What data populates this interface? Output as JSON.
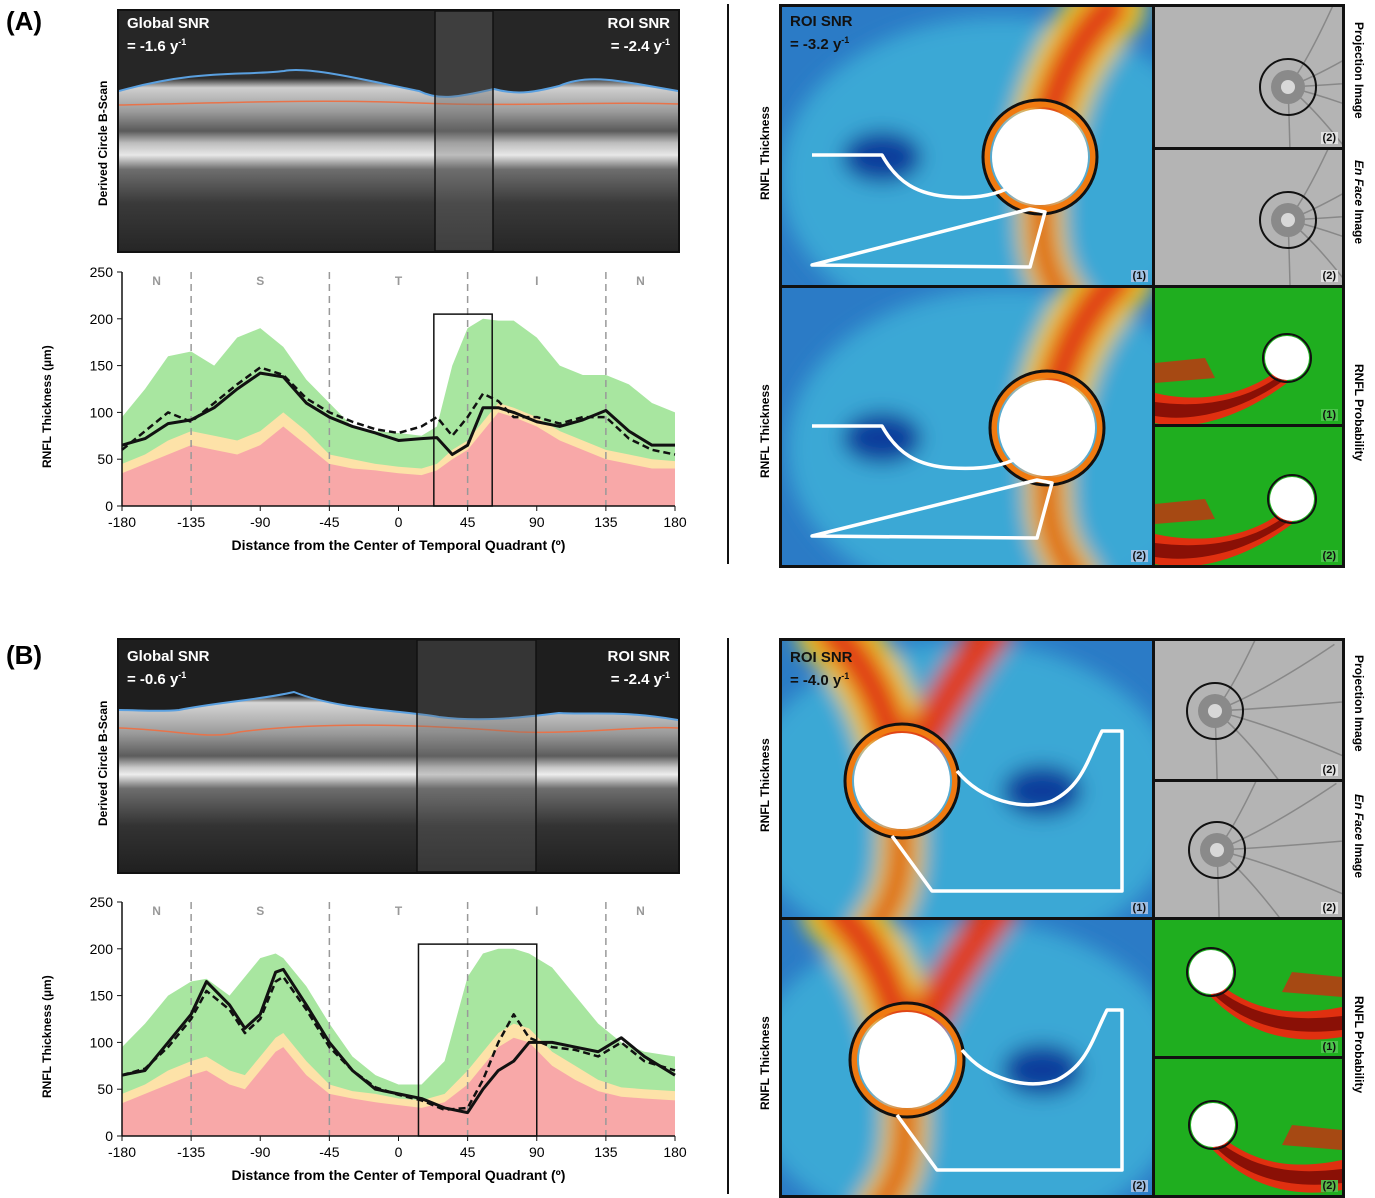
{
  "panels": [
    {
      "label": "(A)",
      "bscan": {
        "ylabel": "Derived Circle B-Scan",
        "global_snr_title": "Global SNR",
        "global_snr_value": "= -1.6 y",
        "roi_snr_title": "ROI SNR",
        "roi_snr_value": "= -2.4 y",
        "unit_exp": "-1"
      },
      "chart": {
        "ylabel": "RNFL Thickness (µm)",
        "xlabel": "Distance from the Center of Temporal Quadrant (º)",
        "quadrants": [
          "N",
          "S",
          "T",
          "I",
          "N"
        ]
      },
      "map": {
        "roi_snr_title": "ROI SNR",
        "roi_snr_value": "= -3.2 y",
        "unit_exp": "-1",
        "row1_label": "RNFL Thickness",
        "row2_label": "RNFL Thickness",
        "side_label_1": "Projection Image",
        "side_label_2_italic": "En Face",
        "side_label_2_rest": " Image",
        "side_label_3": "RNFL Probability",
        "tags": [
          "(1)",
          "(2)",
          "(2)",
          "(2)",
          "(1)",
          "(2)"
        ]
      }
    },
    {
      "label": "(B)",
      "bscan": {
        "ylabel": "Derived Circle B-Scan",
        "global_snr_title": "Global SNR",
        "global_snr_value": "= -0.6 y",
        "roi_snr_title": "ROI SNR",
        "roi_snr_value": "= -2.4 y",
        "unit_exp": "-1"
      },
      "chart": {
        "ylabel": "RNFL Thickness (µm)",
        "xlabel": "Distance from the Center of Temporal Quadrant (º)",
        "quadrants": [
          "N",
          "S",
          "T",
          "I",
          "N"
        ]
      },
      "map": {
        "roi_snr_title": "ROI SNR",
        "roi_snr_value": "= -4.0 y",
        "unit_exp": "-1",
        "row1_label": "RNFL Thickness",
        "row2_label": "RNFL Thickness",
        "side_label_1": "Projection Image",
        "side_label_2_italic": "En Face",
        "side_label_2_rest": " Image",
        "side_label_3": "RNFL Probability",
        "tags": [
          "(1)",
          "(2)",
          "(2)",
          "(2)",
          "(1)",
          "(2)"
        ]
      }
    }
  ],
  "chart_data": [
    {
      "type": "line",
      "xlabel": "Distance from the Center of Temporal Quadrant (º)",
      "ylabel": "RNFL Thickness (µm)",
      "xlim": [
        -180,
        180
      ],
      "ylim": [
        0,
        250
      ],
      "xticks": [
        -180,
        -135,
        -90,
        -45,
        0,
        45,
        90,
        135,
        180
      ],
      "yticks": [
        0,
        50,
        100,
        150,
        200,
        250
      ],
      "quadrant_boundaries": [
        -135,
        -45,
        45,
        135
      ],
      "roi_box": {
        "x": [
          23,
          61
        ],
        "y": [
          0,
          205
        ]
      },
      "x": [
        -180,
        -165,
        -150,
        -135,
        -120,
        -105,
        -90,
        -75,
        -60,
        -45,
        -30,
        -15,
        0,
        15,
        25,
        35,
        45,
        55,
        65,
        75,
        90,
        105,
        120,
        135,
        150,
        165,
        180
      ],
      "series": [
        {
          "values": [
            65,
            72,
            88,
            92,
            105,
            125,
            142,
            138,
            110,
            95,
            85,
            78,
            70,
            72,
            73,
            55,
            65,
            105,
            105,
            100,
            90,
            85,
            92,
            102,
            80,
            65,
            65
          ]
        },
        {
          "values": [
            60,
            80,
            100,
            90,
            110,
            130,
            148,
            140,
            115,
            100,
            90,
            82,
            78,
            85,
            95,
            75,
            95,
            120,
            112,
            95,
            95,
            88,
            95,
            95,
            72,
            60,
            55
          ]
        }
      ],
      "normal_band_upper": [
        95,
        125,
        160,
        165,
        150,
        180,
        190,
        170,
        135,
        110,
        85,
        80,
        78,
        75,
        85,
        150,
        190,
        200,
        198,
        198,
        180,
        150,
        140,
        140,
        130,
        110,
        100
      ],
      "borderline_upper": [
        45,
        55,
        70,
        80,
        75,
        70,
        80,
        100,
        80,
        55,
        50,
        45,
        42,
        40,
        45,
        60,
        70,
        90,
        110,
        105,
        95,
        80,
        70,
        60,
        55,
        50,
        48
      ],
      "abnormal_upper": [
        35,
        45,
        55,
        65,
        60,
        55,
        65,
        85,
        65,
        45,
        40,
        38,
        35,
        33,
        38,
        50,
        60,
        80,
        100,
        95,
        85,
        70,
        60,
        50,
        45,
        40,
        40
      ]
    },
    {
      "type": "line",
      "xlabel": "Distance from the Center of Temporal Quadrant (º)",
      "ylabel": "RNFL Thickness (µm)",
      "xlim": [
        -180,
        180
      ],
      "ylim": [
        0,
        250
      ],
      "xticks": [
        -180,
        -135,
        -90,
        -45,
        0,
        45,
        90,
        135,
        180
      ],
      "yticks": [
        0,
        50,
        100,
        150,
        200,
        250
      ],
      "quadrant_boundaries": [
        -135,
        -45,
        45,
        135
      ],
      "roi_box": {
        "x": [
          13,
          90
        ],
        "y": [
          0,
          205
        ]
      },
      "x": [
        -180,
        -165,
        -150,
        -135,
        -125,
        -110,
        -100,
        -90,
        -80,
        -75,
        -60,
        -45,
        -30,
        -15,
        0,
        15,
        30,
        45,
        55,
        65,
        75,
        85,
        100,
        115,
        130,
        145,
        160,
        180
      ],
      "series": [
        {
          "values": [
            65,
            70,
            100,
            130,
            165,
            140,
            115,
            130,
            175,
            178,
            140,
            100,
            70,
            50,
            45,
            40,
            30,
            25,
            50,
            70,
            80,
            100,
            100,
            95,
            90,
            105,
            85,
            65
          ]
        },
        {
          "values": [
            65,
            72,
            95,
            125,
            155,
            135,
            110,
            125,
            165,
            170,
            135,
            95,
            70,
            52,
            44,
            38,
            28,
            30,
            60,
            100,
            130,
            105,
            95,
            92,
            85,
            100,
            80,
            70
          ]
        }
      ],
      "normal_band_upper": [
        95,
        120,
        150,
        165,
        168,
        150,
        170,
        190,
        195,
        190,
        160,
        120,
        85,
        65,
        55,
        55,
        80,
        170,
        195,
        200,
        200,
        195,
        180,
        150,
        120,
        100,
        90,
        85
      ],
      "borderline_upper": [
        45,
        55,
        70,
        80,
        85,
        70,
        65,
        85,
        105,
        110,
        80,
        55,
        48,
        45,
        40,
        38,
        45,
        70,
        90,
        110,
        120,
        115,
        90,
        75,
        60,
        52,
        50,
        48
      ],
      "abnormal_upper": [
        35,
        45,
        55,
        65,
        70,
        55,
        50,
        70,
        90,
        95,
        65,
        45,
        40,
        36,
        33,
        30,
        36,
        55,
        75,
        95,
        105,
        100,
        75,
        60,
        48,
        42,
        40,
        38
      ]
    }
  ]
}
